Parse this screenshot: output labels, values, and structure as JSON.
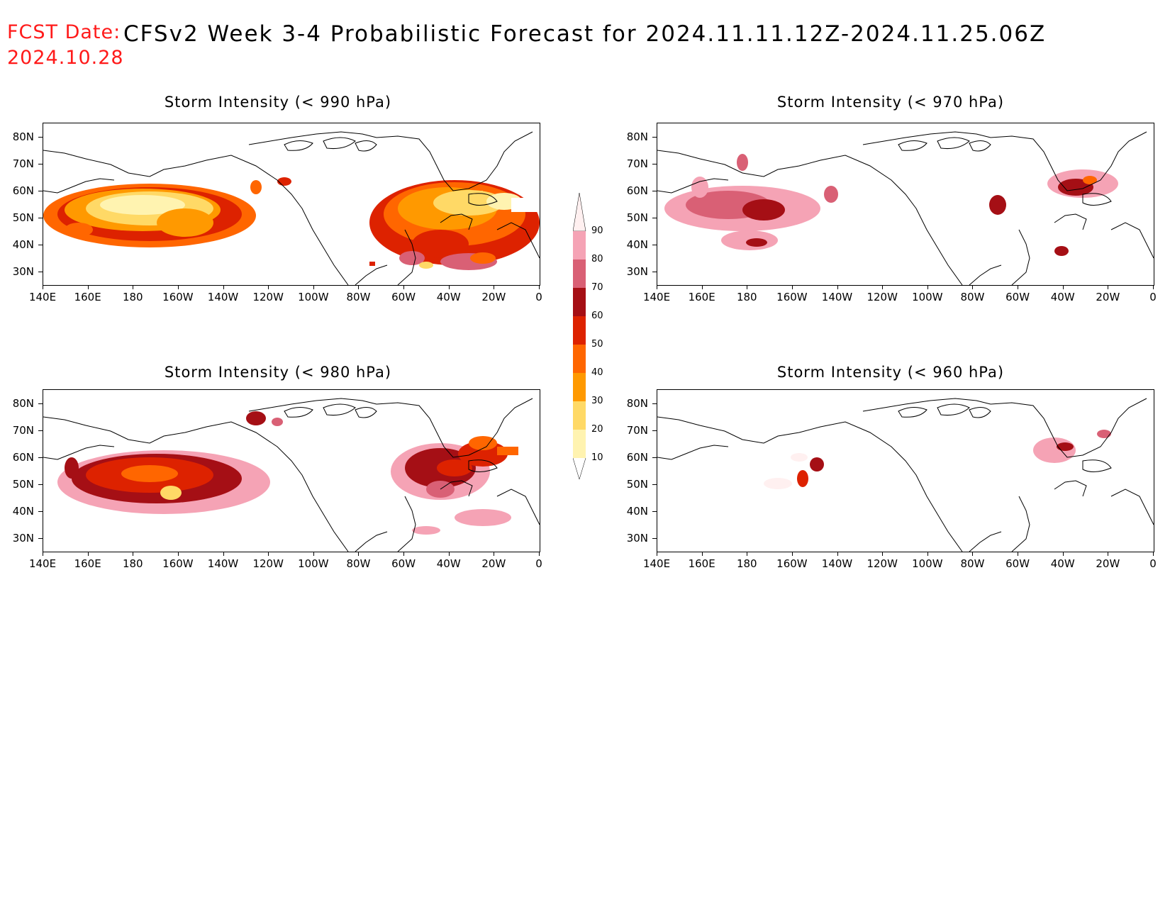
{
  "header": {
    "fcst_label": "FCST Date:",
    "fcst_date": "2024.10.28",
    "title": "CFSv2 Week 3-4 Probabilistic Forecast for 2024.11.11.12Z-2024.11.25.06Z"
  },
  "lat_labels": [
    "80N",
    "70N",
    "60N",
    "50N",
    "40N",
    "30N"
  ],
  "lon_labels": [
    "140E",
    "160E",
    "180",
    "160W",
    "140W",
    "120W",
    "100W",
    "80W",
    "60W",
    "40W",
    "20W",
    "0"
  ],
  "panels": [
    {
      "id": "p990",
      "title": "Storm Intensity (< 990 hPa)"
    },
    {
      "id": "p970",
      "title": "Storm Intensity (< 970 hPa)"
    },
    {
      "id": "p980",
      "title": "Storm Intensity (< 980 hPa)"
    },
    {
      "id": "p960",
      "title": "Storm Intensity (< 960 hPa)"
    }
  ],
  "colorbar": {
    "labels": [
      "90",
      "80",
      "70",
      "60",
      "50",
      "40",
      "30",
      "20",
      "10"
    ],
    "colors": [
      "#fff0f0",
      "#f5a3b5",
      "#d96075",
      "#a50f15",
      "#dd2200",
      "#ff6600",
      "#ff9900",
      "#ffd966",
      "#fff3b0"
    ]
  }
}
